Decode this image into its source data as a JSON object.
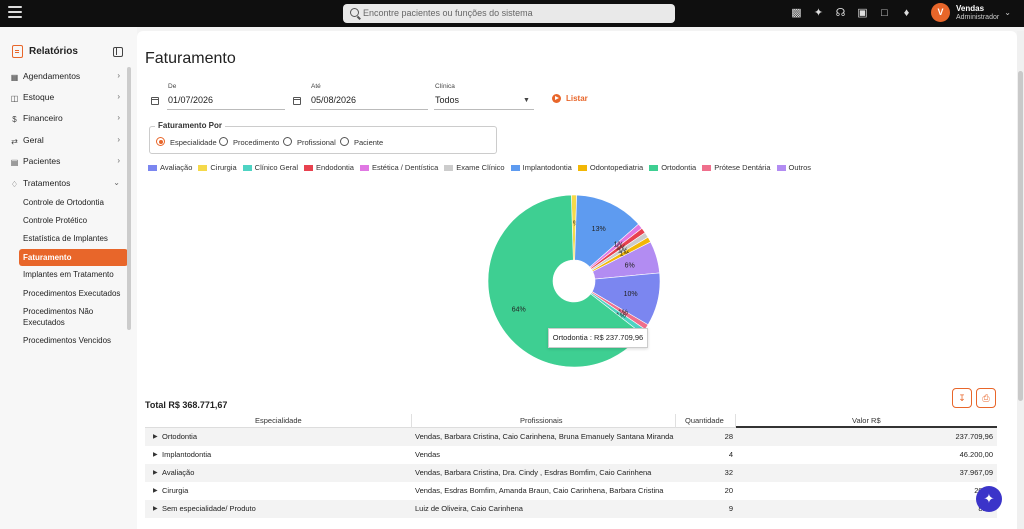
{
  "topbar": {
    "search_placeholder": "Encontre pacientes ou funções do sistema",
    "user": {
      "initial": "V",
      "name": "Vendas",
      "role": "Administrador"
    },
    "icons": [
      "video-icon",
      "sparkle-icon",
      "headset-icon",
      "chat-add-icon",
      "message-icon",
      "bell-icon"
    ]
  },
  "sidebar": {
    "title": "Relatórios",
    "items": [
      {
        "label": "Agendamentos",
        "icon": "calendar-icon"
      },
      {
        "label": "Estoque",
        "icon": "box-icon"
      },
      {
        "label": "Financeiro",
        "icon": "dollar-icon"
      },
      {
        "label": "Geral",
        "icon": "arrows-icon"
      },
      {
        "label": "Pacientes",
        "icon": "user-card-icon"
      },
      {
        "label": "Tratamentos",
        "icon": "tooth-icon"
      }
    ],
    "subitems": [
      "Controle de Ortodontia",
      "Controle Protético",
      "Estatística de Implantes",
      "Faturamento",
      "Implantes em Tratamento",
      "Procedimentos Executados",
      "Procedimentos Não",
      "Executados",
      "Procedimentos Vencidos"
    ]
  },
  "page": {
    "title": "Faturamento",
    "filters": {
      "de_label": "De",
      "de_value": "01/07/2026",
      "ate_label": "Até",
      "ate_value": "05/08/2026",
      "clinica_label": "Clínica",
      "clinica_value": "Todos",
      "listar_label": "Listar"
    },
    "group_by": {
      "label": "Faturamento Por",
      "options": [
        "Especialidade",
        "Procedimento",
        "Profissional",
        "Paciente"
      ],
      "selected": "Especialidade"
    }
  },
  "chart_data": {
    "type": "pie",
    "categories": [
      "Avaliação",
      "Cirurgia",
      "Clínico Geral",
      "Endodontia",
      "Estética / Dentística",
      "Exame Clínico",
      "Implantodontia",
      "Odontopediatria",
      "Ortodontia",
      "Prótese Dentária",
      "Outros"
    ],
    "colors": [
      "#7b86f0",
      "#f5d94a",
      "#4ed3c3",
      "#e8414f",
      "#e078e3",
      "#cccccc",
      "#5e9bf0",
      "#f2b705",
      "#3ecf92",
      "#ef6f8c",
      "#b28cf2"
    ],
    "slice_labels": [
      "10%",
      "1%",
      "1%",
      "1%",
      "1%",
      "1%",
      "13%",
      "1%",
      "64%",
      "1%",
      "6%"
    ],
    "tooltip": "Ortodontia : R$ 237.709,96"
  },
  "table": {
    "total_label": "Total R$ 368.771,67",
    "columns": [
      "Especialidade",
      "Profissionais",
      "Quantidade",
      "Valor R$"
    ],
    "rows": [
      {
        "especialidade": "Ortodontia",
        "profissionais": "Vendas, Barbara Cristina, Caio Carinhena, Bruna Emanuely Santana Miranda",
        "quantidade": "28",
        "valor": "237.709,96"
      },
      {
        "especialidade": "Implantodontia",
        "profissionais": "Vendas",
        "quantidade": "4",
        "valor": "46.200,00"
      },
      {
        "especialidade": "Avaliação",
        "profissionais": "Vendas, Barbara Cristina, Dra. Cindy , Esdras Bomfim, Caio Carinhena",
        "quantidade": "32",
        "valor": "37.967,09"
      },
      {
        "especialidade": "Cirurgia",
        "profissionais": "Vendas, Esdras Bomfim, Amanda Braun, Caio Carinhena, Barbara Cristina",
        "quantidade": "20",
        "valor": "20.39"
      },
      {
        "especialidade": "Sem especialidade/ Produto",
        "profissionais": "Luiz de Oliveira, Caio Carinhena",
        "quantidade": "9",
        "valor": "8.95"
      }
    ]
  }
}
